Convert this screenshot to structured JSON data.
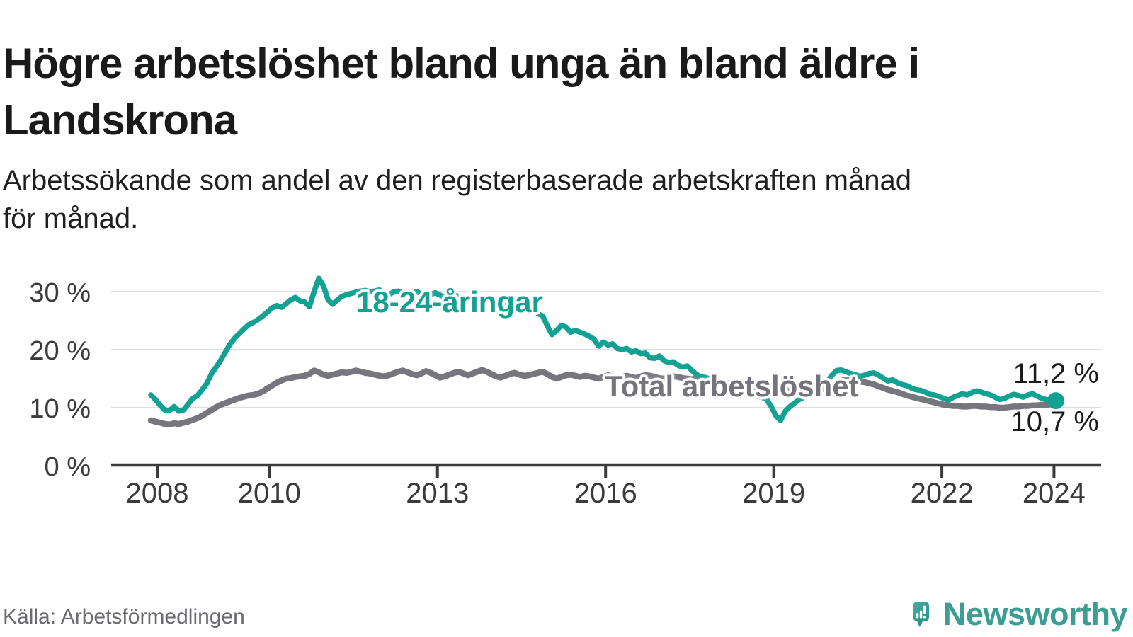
{
  "header": {
    "title": "Högre arbetslöshet bland unga än bland äldre i\nLandskrona",
    "subtitle": "Arbetssökande som andel av den registerbaserade arbetskraften månad\nför månad."
  },
  "footer": {
    "source": "Källa: Arbetsförmedlingen",
    "logo_text": "Newsworthy"
  },
  "colors": {
    "accent_teal": "#12A192",
    "series_gray": "#77767E",
    "axis": "#3B3B3B",
    "gridline": "#DEDEDE",
    "text_dark": "#1A1A1A",
    "logo_teal": "#3C9E92"
  },
  "chart_data": {
    "type": "line",
    "title": "Högre arbetslöshet bland unga än bland äldre i Landskrona",
    "subtitle": "Arbetssökande som andel av den registerbaserade arbetskraften månad för månad.",
    "x_unit": "month",
    "x_start": "2008-01",
    "x_end": "2024-03",
    "xticks": [
      2008,
      2010,
      2013,
      2016,
      2019,
      2022,
      2024
    ],
    "ytick_values": [
      0,
      10,
      20,
      30
    ],
    "ytick_labels": [
      "0 %",
      "10 %",
      "20 %",
      "30 %"
    ],
    "ylim": [
      0,
      33
    ],
    "grid": "horizontal",
    "legend_position": "inline-labels",
    "series": [
      {
        "id": "youth",
        "name": "18-24-åringar",
        "color": "#12A192",
        "end_label": "11,2 %",
        "end_value": 11.2,
        "values": [
          12.2,
          11.4,
          10.4,
          9.6,
          9.5,
          10.2,
          9.4,
          9.6,
          10.6,
          11.6,
          12.1,
          13.1,
          14.2,
          15.8,
          17.0,
          18.2,
          19.6,
          21.0,
          22.0,
          22.8,
          23.6,
          24.3,
          24.7,
          25.2,
          25.8,
          26.5,
          27.2,
          27.6,
          27.3,
          27.9,
          28.6,
          29.0,
          28.4,
          28.2,
          27.4,
          30.0,
          32.3,
          31.0,
          28.6,
          27.8,
          28.6,
          29.2,
          29.5,
          29.7,
          29.9,
          30.1,
          30.2,
          30.0,
          30.1,
          30.3,
          29.8,
          29.5,
          29.9,
          30.1,
          29.8,
          29.5,
          29.8,
          30.0,
          29.6,
          29.3,
          29.5,
          29.8,
          29.4,
          29.0,
          29.2,
          29.5,
          29.1,
          28.5,
          28.8,
          29.1,
          28.8,
          28.5,
          28.8,
          29.2,
          28.6,
          27.8,
          28.2,
          28.9,
          28.3,
          27.6,
          27.2,
          27.4,
          26.9,
          26.2,
          25.8,
          24.1,
          22.6,
          23.3,
          24.2,
          23.9,
          23.0,
          23.3,
          23.0,
          22.7,
          22.3,
          21.8,
          20.6,
          21.3,
          20.8,
          21.0,
          20.2,
          20.0,
          20.2,
          19.6,
          19.8,
          19.3,
          19.4,
          18.6,
          18.5,
          18.9,
          18.1,
          17.8,
          17.9,
          17.3,
          17.0,
          17.2,
          16.4,
          15.7,
          15.3,
          15.2,
          14.9,
          14.6,
          14.4,
          14.2,
          13.8,
          13.5,
          13.2,
          13.0,
          12.8,
          12.4,
          12.0,
          11.8,
          11.4,
          10.2,
          8.6,
          7.8,
          9.4,
          10.2,
          10.8,
          11.4,
          11.8,
          12.2,
          12.6,
          13.0,
          13.6,
          14.6,
          15.6,
          16.4,
          16.5,
          16.2,
          15.9,
          15.7,
          15.4,
          15.6,
          15.9,
          16.0,
          15.6,
          15.1,
          14.6,
          14.8,
          14.3,
          14.0,
          13.8,
          13.4,
          13.1,
          13.0,
          12.7,
          12.3,
          12.2,
          11.9,
          11.6,
          11.3,
          11.8,
          12.1,
          12.4,
          12.2,
          12.6,
          12.9,
          12.7,
          12.4,
          12.2,
          11.8,
          11.4,
          11.6,
          12.0,
          12.3,
          12.1,
          11.8,
          12.2,
          12.4,
          12.0,
          11.6,
          11.4,
          11.1,
          11.2
        ]
      },
      {
        "id": "total",
        "name": "Total arbetslöshet",
        "color": "#77767E",
        "end_label": "10,7 %",
        "end_value": 10.7,
        "values": [
          7.8,
          7.6,
          7.4,
          7.2,
          7.1,
          7.3,
          7.2,
          7.4,
          7.6,
          7.9,
          8.2,
          8.6,
          9.1,
          9.6,
          10.1,
          10.5,
          10.8,
          11.1,
          11.4,
          11.7,
          11.9,
          12.1,
          12.2,
          12.4,
          12.8,
          13.3,
          13.8,
          14.3,
          14.7,
          15.0,
          15.1,
          15.3,
          15.4,
          15.5,
          15.8,
          16.4,
          16.1,
          15.7,
          15.5,
          15.7,
          15.9,
          16.1,
          16.0,
          16.2,
          16.4,
          16.2,
          16.0,
          15.9,
          15.7,
          15.5,
          15.4,
          15.6,
          15.9,
          16.2,
          16.4,
          16.1,
          15.8,
          15.6,
          15.9,
          16.3,
          16.0,
          15.6,
          15.2,
          15.4,
          15.7,
          16.0,
          16.2,
          15.9,
          15.6,
          15.9,
          16.2,
          16.5,
          16.2,
          15.8,
          15.4,
          15.2,
          15.5,
          15.8,
          16.0,
          15.7,
          15.5,
          15.6,
          15.8,
          16.0,
          16.2,
          15.8,
          15.3,
          15.0,
          15.3,
          15.6,
          15.7,
          15.5,
          15.3,
          15.5,
          15.4,
          15.2,
          15.0,
          15.3,
          15.6,
          15.4,
          15.1,
          15.3,
          15.5,
          15.3,
          15.1,
          15.4,
          15.6,
          15.5,
          15.3,
          15.1,
          15.0,
          15.2,
          15.4,
          15.3,
          15.1,
          15.0,
          14.9,
          15.1,
          15.2,
          15.0,
          14.8,
          14.6,
          14.5,
          14.3,
          14.1,
          14.0,
          13.9,
          13.8,
          13.7,
          13.6,
          13.5,
          13.4,
          13.3,
          13.2,
          13.1,
          13.0,
          13.0,
          12.9,
          12.9,
          12.8,
          12.8,
          12.9,
          12.9,
          13.0,
          13.2,
          13.5,
          13.9,
          14.4,
          14.7,
          14.8,
          14.7,
          14.6,
          14.5,
          14.4,
          14.2,
          14.0,
          13.7,
          13.4,
          13.1,
          12.9,
          12.7,
          12.4,
          12.1,
          11.9,
          11.7,
          11.5,
          11.3,
          11.1,
          10.9,
          10.7,
          10.5,
          10.4,
          10.3,
          10.3,
          10.2,
          10.2,
          10.3,
          10.3,
          10.2,
          10.2,
          10.1,
          10.1,
          10.0,
          10.0,
          10.1,
          10.2,
          10.2,
          10.3,
          10.3,
          10.4,
          10.4,
          10.5,
          10.5,
          10.6,
          10.7
        ]
      }
    ]
  }
}
